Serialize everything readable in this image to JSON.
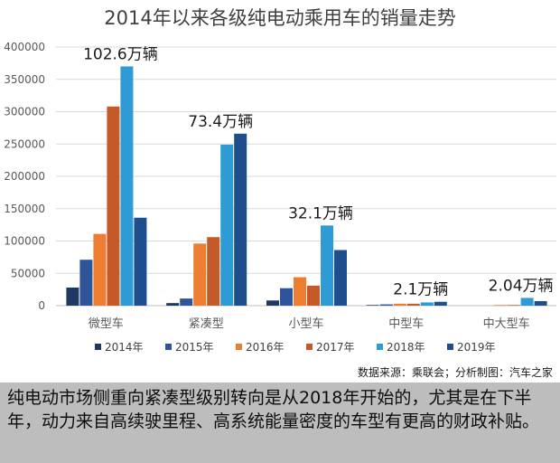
{
  "chart_data": {
    "type": "bar",
    "title": "2014年以来各级纯电动乘用车的销量走势",
    "categories": [
      "微型车",
      "紧凑型",
      "小型车",
      "中型车",
      "中大型车"
    ],
    "series": [
      {
        "name": "2014年",
        "color": "#1f3864",
        "values": [
          28000,
          4000,
          8000,
          1000,
          0
        ]
      },
      {
        "name": "2015年",
        "color": "#2e5597",
        "values": [
          71000,
          11000,
          27000,
          2000,
          0
        ]
      },
      {
        "name": "2016年",
        "color": "#ed7d31",
        "values": [
          111000,
          96000,
          44000,
          3000,
          1000
        ]
      },
      {
        "name": "2017年",
        "color": "#c55a28",
        "values": [
          308000,
          106000,
          31000,
          3000,
          1000
        ]
      },
      {
        "name": "2018年",
        "color": "#2e9bd6",
        "values": [
          370000,
          249000,
          124000,
          5000,
          12000
        ]
      },
      {
        "name": "2019年",
        "color": "#1f4e8c",
        "values": [
          136000,
          266000,
          86000,
          6000,
          7000
        ]
      }
    ],
    "ylim": [
      0,
      400000
    ],
    "yticks": [
      "0",
      "50000",
      "100000",
      "150000",
      "200000",
      "250000",
      "300000",
      "350000",
      "400000"
    ],
    "annotations": [
      "102.6万辆",
      "73.4万辆",
      "32.1万辆",
      "2.1万辆",
      "2.04万辆"
    ],
    "xlabel": "",
    "ylabel": "",
    "legend_position": "bottom",
    "grid": true
  },
  "source_text": "数据来源：乘联会；分析制图：汽车之家",
  "caption_text": "纯电动市场侧重向紧凑型级别转向是从2018年开始的，尤其是在下半年，动力来自高续驶里程、高系统能量密度的车型有更高的财政补贴。"
}
